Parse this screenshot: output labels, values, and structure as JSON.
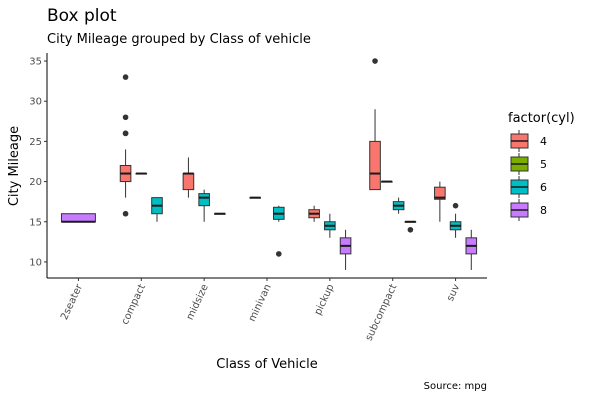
{
  "chart_data": {
    "type": "box",
    "title": "Box plot",
    "subtitle": "City Mileage grouped by Class of vehicle",
    "xlabel": "Class of Vehicle",
    "ylabel": "City Mileage",
    "caption": "Source: mpg",
    "ylim": [
      8,
      36
    ],
    "yticks": [
      10,
      15,
      20,
      25,
      30,
      35
    ],
    "grid": false,
    "legend_position": "right",
    "legend": {
      "title": "factor(cyl)",
      "entries": [
        {
          "label": "4",
          "color": "#F8766D"
        },
        {
          "label": "5",
          "color": "#7CAE00"
        },
        {
          "label": "6",
          "color": "#00BFC4"
        },
        {
          "label": "8",
          "color": "#C77CFF"
        }
      ]
    },
    "categories": [
      "2seater",
      "compact",
      "midsize",
      "minivan",
      "pickup",
      "subcompact",
      "suv"
    ],
    "groups": [
      {
        "category": "2seater",
        "boxes": [
          {
            "cyl": "8",
            "min": 15,
            "q1": 15,
            "median": 15,
            "q3": 16,
            "max": 16,
            "outliers": []
          }
        ]
      },
      {
        "category": "compact",
        "boxes": [
          {
            "cyl": "4",
            "min": 18,
            "q1": 20,
            "median": 21,
            "q3": 22,
            "max": 24,
            "outliers": [
              16,
              26,
              26,
              28,
              33
            ]
          },
          {
            "cyl": "5",
            "min": 21,
            "q1": 21,
            "median": 21,
            "q3": 21,
            "max": 21,
            "outliers": []
          },
          {
            "cyl": "6",
            "min": 15,
            "q1": 16,
            "median": 17,
            "q3": 18,
            "max": 18,
            "outliers": []
          }
        ]
      },
      {
        "category": "midsize",
        "boxes": [
          {
            "cyl": "4",
            "min": 18,
            "q1": 19,
            "median": 21,
            "q3": 21,
            "max": 23,
            "outliers": []
          },
          {
            "cyl": "6",
            "min": 15,
            "q1": 17,
            "median": 18,
            "q3": 18.5,
            "max": 19,
            "outliers": []
          },
          {
            "cyl": "8",
            "min": 16,
            "q1": 16,
            "median": 16,
            "q3": 16,
            "max": 16,
            "outliers": []
          }
        ]
      },
      {
        "category": "minivan",
        "boxes": [
          {
            "cyl": "4",
            "min": 18,
            "q1": 18,
            "median": 18,
            "q3": 18,
            "max": 18,
            "outliers": []
          },
          {
            "cyl": "6",
            "min": 15,
            "q1": 15.3,
            "median": 16,
            "q3": 16.8,
            "max": 17,
            "outliers": [
              11
            ]
          }
        ]
      },
      {
        "category": "pickup",
        "boxes": [
          {
            "cyl": "4",
            "min": 15,
            "q1": 15.5,
            "median": 16,
            "q3": 16.5,
            "max": 17,
            "outliers": []
          },
          {
            "cyl": "6",
            "min": 13,
            "q1": 14,
            "median": 14.5,
            "q3": 15,
            "max": 16,
            "outliers": []
          },
          {
            "cyl": "8",
            "min": 9,
            "q1": 11,
            "median": 12,
            "q3": 13,
            "max": 14,
            "outliers": []
          }
        ]
      },
      {
        "category": "subcompact",
        "boxes": [
          {
            "cyl": "4",
            "min": 19,
            "q1": 19,
            "median": 21,
            "q3": 25,
            "max": 29,
            "outliers": [
              35
            ]
          },
          {
            "cyl": "5",
            "min": 20,
            "q1": 20,
            "median": 20,
            "q3": 20,
            "max": 20,
            "outliers": []
          },
          {
            "cyl": "6",
            "min": 16,
            "q1": 16.5,
            "median": 17,
            "q3": 17.5,
            "max": 18,
            "outliers": []
          },
          {
            "cyl": "8",
            "min": 15,
            "q1": 15,
            "median": 15,
            "q3": 15,
            "max": 15,
            "outliers": [
              14
            ]
          }
        ]
      },
      {
        "category": "suv",
        "boxes": [
          {
            "cyl": "4",
            "min": 15,
            "q1": 17.8,
            "median": 18,
            "q3": 19.3,
            "max": 20,
            "outliers": []
          },
          {
            "cyl": "6",
            "min": 13,
            "q1": 14,
            "median": 14.5,
            "q3": 15,
            "max": 16,
            "outliers": [
              17
            ]
          },
          {
            "cyl": "8",
            "min": 9,
            "q1": 11,
            "median": 12,
            "q3": 13,
            "max": 14,
            "outliers": []
          }
        ]
      }
    ]
  }
}
